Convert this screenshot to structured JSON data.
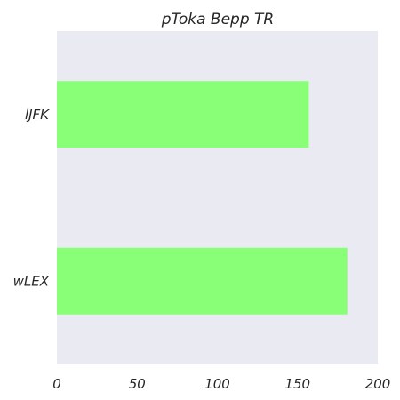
{
  "chart_data": {
    "type": "bar",
    "orientation": "horizontal",
    "title": "pToka Bepp TR",
    "categories": [
      "lJFK",
      "wLEX"
    ],
    "values": [
      157,
      181
    ],
    "xlabel": "",
    "ylabel": "",
    "xlim": [
      0,
      200
    ],
    "x_ticks": [
      "0",
      "50",
      "100",
      "150",
      "200"
    ],
    "grid": false,
    "colors": {
      "bar": "#88ff77",
      "plot_background": "#eaeaf2"
    }
  }
}
